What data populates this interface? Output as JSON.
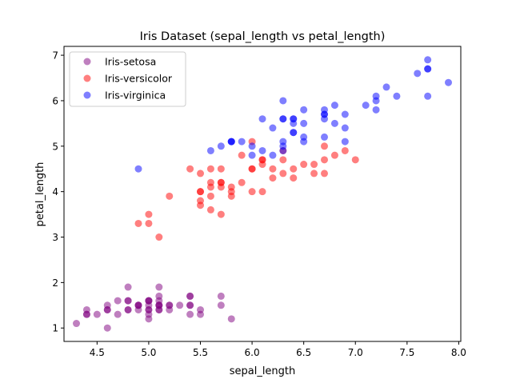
{
  "chart_data": {
    "type": "scatter",
    "title": "Iris Dataset (sepal_length vs  petal_length)",
    "xlabel": "sepal_length",
    "ylabel": "petal_length",
    "xlim": [
      4.18,
      8.02
    ],
    "ylim": [
      0.705,
      7.195
    ],
    "xticks": [
      "4.5",
      "5.0",
      "5.5",
      "6.0",
      "6.5",
      "7.0",
      "7.5",
      "8.0"
    ],
    "yticks": [
      "1",
      "2",
      "3",
      "4",
      "5",
      "6",
      "7"
    ],
    "grid": false,
    "legend_position": "upper-left",
    "series": [
      {
        "name": "Iris-setosa",
        "color": "#800080",
        "alpha": 0.5,
        "points": [
          [
            5.1,
            1.4
          ],
          [
            4.9,
            1.4
          ],
          [
            4.7,
            1.3
          ],
          [
            4.6,
            1.5
          ],
          [
            5.0,
            1.4
          ],
          [
            5.4,
            1.7
          ],
          [
            4.6,
            1.4
          ],
          [
            5.0,
            1.5
          ],
          [
            4.4,
            1.4
          ],
          [
            4.9,
            1.5
          ],
          [
            5.4,
            1.5
          ],
          [
            4.8,
            1.6
          ],
          [
            4.8,
            1.4
          ],
          [
            4.3,
            1.1
          ],
          [
            5.8,
            1.2
          ],
          [
            5.7,
            1.5
          ],
          [
            5.4,
            1.3
          ],
          [
            5.1,
            1.4
          ],
          [
            5.7,
            1.7
          ],
          [
            5.1,
            1.5
          ],
          [
            5.4,
            1.7
          ],
          [
            5.1,
            1.5
          ],
          [
            4.6,
            1.0
          ],
          [
            5.1,
            1.7
          ],
          [
            4.8,
            1.9
          ],
          [
            5.0,
            1.6
          ],
          [
            5.0,
            1.6
          ],
          [
            5.2,
            1.5
          ],
          [
            5.2,
            1.4
          ],
          [
            4.7,
            1.6
          ],
          [
            4.8,
            1.6
          ],
          [
            5.4,
            1.5
          ],
          [
            5.2,
            1.5
          ],
          [
            5.5,
            1.4
          ],
          [
            4.9,
            1.5
          ],
          [
            5.0,
            1.2
          ],
          [
            5.5,
            1.3
          ],
          [
            4.9,
            1.5
          ],
          [
            4.4,
            1.3
          ],
          [
            5.1,
            1.5
          ],
          [
            5.0,
            1.3
          ],
          [
            4.5,
            1.3
          ],
          [
            4.4,
            1.3
          ],
          [
            5.0,
            1.6
          ],
          [
            5.1,
            1.9
          ],
          [
            4.8,
            1.4
          ],
          [
            5.1,
            1.6
          ],
          [
            4.6,
            1.4
          ],
          [
            5.3,
            1.5
          ],
          [
            5.0,
            1.4
          ]
        ]
      },
      {
        "name": "Iris-versicolor",
        "color": "#ff0000",
        "alpha": 0.5,
        "points": [
          [
            7.0,
            4.7
          ],
          [
            6.4,
            4.5
          ],
          [
            6.9,
            4.9
          ],
          [
            5.5,
            4.0
          ],
          [
            6.5,
            4.6
          ],
          [
            5.7,
            4.5
          ],
          [
            6.3,
            4.7
          ],
          [
            4.9,
            3.3
          ],
          [
            6.6,
            4.6
          ],
          [
            5.2,
            3.9
          ],
          [
            5.0,
            3.5
          ],
          [
            5.9,
            4.2
          ],
          [
            6.0,
            4.0
          ],
          [
            6.1,
            4.7
          ],
          [
            5.6,
            3.6
          ],
          [
            6.7,
            4.4
          ],
          [
            5.6,
            4.5
          ],
          [
            5.8,
            4.1
          ],
          [
            6.2,
            4.5
          ],
          [
            5.6,
            3.9
          ],
          [
            5.9,
            4.8
          ],
          [
            6.1,
            4.0
          ],
          [
            6.3,
            4.9
          ],
          [
            6.1,
            4.7
          ],
          [
            6.4,
            4.3
          ],
          [
            6.6,
            4.4
          ],
          [
            6.8,
            4.8
          ],
          [
            6.7,
            5.0
          ],
          [
            6.0,
            4.5
          ],
          [
            5.7,
            3.5
          ],
          [
            5.5,
            3.8
          ],
          [
            5.5,
            3.7
          ],
          [
            5.8,
            3.9
          ],
          [
            6.0,
            5.1
          ],
          [
            5.4,
            4.5
          ],
          [
            6.0,
            4.5
          ],
          [
            6.7,
            4.7
          ],
          [
            6.3,
            4.4
          ],
          [
            5.6,
            4.1
          ],
          [
            5.5,
            4.0
          ],
          [
            5.5,
            4.4
          ],
          [
            6.1,
            4.6
          ],
          [
            5.8,
            4.0
          ],
          [
            5.0,
            3.3
          ],
          [
            5.6,
            4.2
          ],
          [
            5.7,
            4.2
          ],
          [
            5.7,
            4.2
          ],
          [
            6.2,
            4.3
          ],
          [
            5.1,
            3.0
          ],
          [
            5.7,
            4.1
          ]
        ]
      },
      {
        "name": "Iris-virginica",
        "color": "#0000ff",
        "alpha": 0.5,
        "points": [
          [
            6.3,
            6.0
          ],
          [
            5.8,
            5.1
          ],
          [
            7.1,
            5.9
          ],
          [
            6.3,
            5.6
          ],
          [
            6.5,
            5.8
          ],
          [
            7.6,
            6.6
          ],
          [
            4.9,
            4.5
          ],
          [
            7.3,
            6.3
          ],
          [
            6.7,
            5.8
          ],
          [
            7.2,
            6.1
          ],
          [
            6.5,
            5.1
          ],
          [
            6.4,
            5.3
          ],
          [
            6.8,
            5.5
          ],
          [
            5.7,
            5.0
          ],
          [
            5.8,
            5.1
          ],
          [
            6.4,
            5.3
          ],
          [
            6.5,
            5.5
          ],
          [
            7.7,
            6.7
          ],
          [
            7.7,
            6.9
          ],
          [
            6.0,
            5.0
          ],
          [
            6.9,
            5.7
          ],
          [
            5.6,
            4.9
          ],
          [
            7.7,
            6.7
          ],
          [
            6.3,
            4.9
          ],
          [
            6.7,
            5.7
          ],
          [
            7.2,
            6.0
          ],
          [
            6.2,
            4.8
          ],
          [
            6.1,
            4.9
          ],
          [
            6.4,
            5.6
          ],
          [
            7.2,
            5.8
          ],
          [
            7.4,
            6.1
          ],
          [
            7.9,
            6.4
          ],
          [
            6.4,
            5.6
          ],
          [
            6.3,
            5.1
          ],
          [
            6.1,
            5.6
          ],
          [
            7.7,
            6.1
          ],
          [
            6.3,
            5.6
          ],
          [
            6.4,
            5.5
          ],
          [
            6.0,
            4.8
          ],
          [
            6.9,
            5.4
          ],
          [
            6.7,
            5.6
          ],
          [
            6.9,
            5.1
          ],
          [
            5.8,
            5.1
          ],
          [
            6.8,
            5.9
          ],
          [
            6.7,
            5.7
          ],
          [
            6.7,
            5.2
          ],
          [
            6.3,
            5.0
          ],
          [
            6.5,
            5.2
          ],
          [
            6.2,
            5.4
          ],
          [
            5.9,
            5.1
          ]
        ]
      }
    ]
  }
}
